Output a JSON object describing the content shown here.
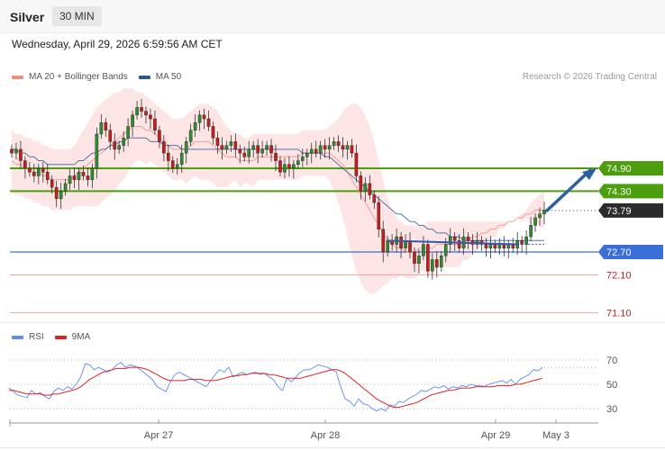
{
  "header": {
    "title": "Silver",
    "timeframe": "30 MIN"
  },
  "datetime": "Wednesday, April 29, 2026 6:59:56 AM CET",
  "price_legend": [
    {
      "label": "MA 20 + Bollinger Bands",
      "color": "#f28b82"
    },
    {
      "label": "MA 50",
      "color": "#2b5797"
    }
  ],
  "credit": "Research © 2026 Trading Central",
  "rsi_legend": [
    {
      "label": "RSI",
      "color": "#5b8def"
    },
    {
      "label": "9MA",
      "color": "#e02020"
    }
  ],
  "colors": {
    "bull": "#2e8b2e",
    "bear": "#c41e1e",
    "resistance": "#4c9e0f",
    "support": "#3a6fd8",
    "weak_support": "#f0a3a3",
    "current": "#333333",
    "arrow": "#2e5f9e"
  },
  "chart_data": [
    {
      "type": "candlestick",
      "title": "Silver",
      "timeframe": "30 MIN",
      "x_ticks": [
        "Apr 27",
        "Apr 28",
        "Apr 29",
        "May 3"
      ],
      "ylim": [
        70.8,
        77.0
      ],
      "levels": [
        {
          "value": 74.9,
          "label": "74.90",
          "role": "resistance"
        },
        {
          "value": 74.3,
          "label": "74.30",
          "role": "resistance"
        },
        {
          "value": 73.79,
          "label": "73.79",
          "role": "current"
        },
        {
          "value": 72.7,
          "label": "72.70",
          "role": "support"
        },
        {
          "value": 72.1,
          "label": "72.10",
          "role": "weak_support"
        },
        {
          "value": 71.1,
          "label": "71.10",
          "role": "weak_support"
        }
      ],
      "close": [
        75.3,
        75.4,
        75.1,
        74.9,
        74.8,
        74.7,
        74.9,
        74.8,
        74.6,
        74.4,
        74.1,
        74.3,
        74.5,
        74.7,
        74.6,
        74.8,
        74.7,
        74.6,
        74.9,
        75.8,
        76.1,
        75.9,
        75.6,
        75.4,
        75.5,
        75.7,
        76.0,
        76.3,
        76.5,
        76.4,
        76.3,
        76.2,
        75.9,
        75.6,
        75.3,
        75.1,
        74.9,
        75.0,
        75.3,
        75.6,
        75.9,
        76.1,
        76.3,
        76.2,
        76.0,
        75.7,
        75.5,
        75.4,
        75.5,
        75.6,
        75.4,
        75.3,
        75.2,
        75.4,
        75.5,
        75.3,
        75.4,
        75.5,
        75.3,
        75.1,
        74.8,
        75.0,
        74.9,
        75.0,
        75.1,
        75.2,
        75.3,
        75.4,
        75.3,
        75.5,
        75.4,
        75.5,
        75.6,
        75.5,
        75.4,
        75.5,
        75.3,
        74.7,
        74.3,
        74.5,
        74.2,
        74.0,
        73.3,
        72.7,
        73.0,
        72.9,
        73.1,
        72.8,
        73.0,
        72.7,
        72.4,
        72.6,
        72.9,
        72.2,
        72.5,
        72.3,
        72.6,
        72.9,
        73.1,
        73.0,
        72.8,
        73.1,
        73.0,
        72.9,
        73.0,
        72.9,
        72.8,
        72.9,
        72.8,
        72.9,
        72.8,
        72.9,
        72.8,
        73.0,
        72.9,
        73.1,
        73.4,
        73.6,
        73.7,
        73.8
      ],
      "ma20": [
        75.1,
        75.0,
        75.0,
        74.9,
        74.9,
        74.8,
        74.8,
        74.7,
        74.7,
        74.6,
        74.6,
        74.6,
        74.6,
        74.6,
        74.7,
        74.8,
        74.9,
        75.0,
        75.1,
        75.2,
        75.3,
        75.4,
        75.5,
        75.6,
        75.7,
        75.8,
        75.9,
        76.0,
        76.0,
        76.0,
        75.9,
        75.9,
        75.8,
        75.7,
        75.6,
        75.5,
        75.4,
        75.4,
        75.4,
        75.4,
        75.5,
        75.6,
        75.6,
        75.6,
        75.6,
        75.5,
        75.4,
        75.3,
        75.2,
        75.2,
        75.2,
        75.1,
        75.1,
        75.1,
        75.1,
        75.2,
        75.2,
        75.2,
        75.2,
        75.2,
        75.2,
        75.2,
        75.2,
        75.2,
        75.2,
        75.3,
        75.3,
        75.3,
        75.3,
        75.3,
        75.3,
        75.3,
        75.2,
        75.1,
        75.0,
        74.8,
        74.6,
        74.4,
        74.2,
        74.0,
        73.8,
        73.6,
        73.4,
        73.2,
        73.0,
        72.9,
        72.8,
        72.8,
        72.7,
        72.7,
        72.7,
        72.8,
        72.8,
        72.8,
        72.8,
        72.9,
        72.9,
        72.9,
        72.9,
        72.9,
        72.9,
        73.0,
        73.0,
        73.1,
        73.1,
        73.2,
        73.2,
        73.3,
        73.3,
        73.4,
        73.4,
        73.5,
        73.5,
        73.6,
        73.6,
        73.7,
        73.7,
        73.8,
        73.8,
        73.8
      ],
      "ma50": [
        75.4,
        75.4,
        75.3,
        75.3,
        75.2,
        75.2,
        75.1,
        75.1,
        75.0,
        75.0,
        75.0,
        75.0,
        75.0,
        75.0,
        75.0,
        75.1,
        75.1,
        75.2,
        75.3,
        75.3,
        75.4,
        75.4,
        75.5,
        75.5,
        75.6,
        75.6,
        75.7,
        75.7,
        75.7,
        75.7,
        75.7,
        75.6,
        75.6,
        75.6,
        75.5,
        75.5,
        75.5,
        75.5,
        75.4,
        75.4,
        75.4,
        75.4,
        75.4,
        75.4,
        75.4,
        75.4,
        75.4,
        75.4,
        75.4,
        75.4,
        75.4,
        75.4,
        75.4,
        75.4,
        75.4,
        75.4,
        75.4,
        75.4,
        75.4,
        75.4,
        75.4,
        75.4,
        75.4,
        75.4,
        75.4,
        75.3,
        75.3,
        75.3,
        75.3,
        75.3,
        75.2,
        75.2,
        75.1,
        75.0,
        74.9,
        74.8,
        74.7,
        74.6,
        74.5,
        74.4,
        74.3,
        74.2,
        74.1,
        74.0,
        73.9,
        73.8,
        73.7,
        73.7,
        73.6,
        73.5,
        73.5,
        73.4,
        73.4,
        73.3,
        73.3,
        73.2,
        73.2,
        73.2,
        73.1,
        73.1,
        73.1,
        73.0,
        73.0,
        73.0,
        73.0,
        73.0,
        73.0,
        73.0,
        73.0,
        73.0,
        73.0,
        73.0,
        73.0,
        73.0,
        73.0,
        73.0,
        73.0,
        73.0,
        73.0,
        73.0
      ],
      "bb_upper": [
        75.9,
        75.8,
        75.8,
        75.7,
        75.7,
        75.6,
        75.6,
        75.5,
        75.5,
        75.4,
        75.4,
        75.4,
        75.4,
        75.4,
        75.5,
        75.7,
        75.9,
        76.1,
        76.3,
        76.5,
        76.6,
        76.7,
        76.8,
        76.9,
        76.9,
        77.0,
        77.0,
        77.0,
        76.9,
        76.9,
        76.8,
        76.7,
        76.6,
        76.5,
        76.4,
        76.3,
        76.2,
        76.2,
        76.2,
        76.3,
        76.4,
        76.5,
        76.6,
        76.6,
        76.6,
        76.5,
        76.4,
        76.2,
        76.0,
        75.9,
        75.8,
        75.8,
        75.7,
        75.7,
        75.8,
        75.8,
        75.8,
        75.8,
        75.8,
        75.8,
        75.8,
        75.8,
        75.8,
        75.8,
        75.8,
        75.9,
        75.9,
        75.9,
        75.9,
        75.9,
        75.9,
        76.0,
        76.1,
        76.2,
        76.4,
        76.5,
        76.6,
        76.6,
        76.5,
        76.3,
        76.0,
        75.6,
        75.1,
        74.6,
        74.1,
        73.8,
        73.6,
        73.5,
        73.4,
        73.4,
        73.4,
        73.4,
        73.4,
        73.5,
        73.5,
        73.5,
        73.5,
        73.5,
        73.5,
        73.5,
        73.5,
        73.5,
        73.5,
        73.5,
        73.5,
        73.5,
        73.5,
        73.5,
        73.5,
        73.5,
        73.5,
        73.5,
        73.5,
        73.6,
        73.7,
        73.8,
        74.0,
        74.1,
        74.2,
        74.3
      ],
      "bb_lower": [
        74.3,
        74.2,
        74.2,
        74.1,
        74.1,
        74.0,
        74.0,
        73.9,
        73.9,
        73.8,
        73.8,
        73.8,
        73.8,
        73.8,
        73.9,
        73.9,
        73.9,
        73.9,
        73.9,
        73.9,
        74.0,
        74.1,
        74.2,
        74.3,
        74.5,
        74.6,
        74.8,
        75.0,
        75.1,
        75.1,
        75.0,
        75.1,
        75.0,
        74.9,
        74.8,
        74.7,
        74.6,
        74.6,
        74.6,
        74.5,
        74.6,
        74.7,
        74.6,
        74.6,
        74.6,
        74.5,
        74.4,
        74.4,
        74.4,
        74.5,
        74.6,
        74.4,
        74.5,
        74.5,
        74.4,
        74.6,
        74.6,
        74.6,
        74.6,
        74.6,
        74.6,
        74.6,
        74.6,
        74.6,
        74.6,
        74.7,
        74.7,
        74.7,
        74.7,
        74.7,
        74.7,
        74.6,
        74.3,
        74.0,
        73.6,
        73.1,
        72.6,
        72.2,
        71.9,
        71.7,
        71.6,
        71.6,
        71.7,
        71.8,
        71.9,
        72.0,
        72.0,
        72.1,
        72.0,
        72.0,
        72.0,
        72.2,
        72.2,
        72.1,
        72.1,
        72.3,
        72.3,
        72.3,
        72.3,
        72.3,
        72.3,
        72.5,
        72.5,
        72.7,
        72.7,
        72.9,
        72.9,
        73.1,
        73.1,
        73.3,
        73.3,
        73.5,
        73.5,
        73.6,
        73.5,
        73.6,
        73.4,
        73.5,
        73.4,
        73.3
      ]
    },
    {
      "type": "line",
      "title": "RSI",
      "ylim": [
        20,
        80
      ],
      "y_ticks": [
        70,
        50,
        30
      ],
      "series": [
        {
          "name": "RSI",
          "values": [
            47,
            44,
            41,
            40,
            39,
            45,
            42,
            43,
            40,
            38,
            44,
            47,
            45,
            48,
            46,
            50,
            56,
            67,
            66,
            62,
            64,
            62,
            60,
            62,
            66,
            68,
            64,
            66,
            65,
            63,
            60,
            57,
            54,
            48,
            46,
            44,
            52,
            58,
            60,
            58,
            56,
            54,
            52,
            50,
            48,
            53,
            58,
            62,
            60,
            64,
            56,
            58,
            60,
            58,
            59,
            60,
            58,
            59,
            56,
            54,
            48,
            45,
            55,
            52,
            56,
            60,
            62,
            62,
            64,
            66,
            65,
            64,
            62,
            60,
            48,
            38,
            36,
            32,
            38,
            34,
            33,
            30,
            28,
            30,
            28,
            33,
            32,
            36,
            35,
            38,
            40,
            42,
            45,
            44,
            46,
            48,
            47,
            49,
            46,
            48,
            47,
            49,
            48,
            50,
            49,
            49,
            48,
            50,
            51,
            52,
            53,
            51,
            54,
            50,
            54,
            56,
            58,
            62,
            61,
            64
          ]
        },
        {
          "name": "9MA",
          "values": [
            45,
            45,
            44,
            43,
            42,
            42,
            42,
            42,
            41,
            41,
            42,
            42,
            43,
            44,
            45,
            46,
            48,
            51,
            54,
            56,
            58,
            60,
            61,
            62,
            63,
            63,
            63,
            64,
            64,
            64,
            63,
            62,
            60,
            58,
            56,
            54,
            53,
            53,
            53,
            53,
            54,
            54,
            54,
            54,
            53,
            53,
            53,
            54,
            55,
            56,
            57,
            57,
            58,
            58,
            59,
            59,
            59,
            59,
            58,
            58,
            57,
            56,
            55,
            55,
            55,
            55,
            56,
            57,
            58,
            59,
            60,
            61,
            62,
            62,
            61,
            59,
            56,
            53,
            50,
            47,
            44,
            41,
            38,
            36,
            34,
            32,
            31,
            31,
            32,
            33,
            34,
            35,
            37,
            39,
            41,
            42,
            43,
            44,
            45,
            45,
            46,
            47,
            47,
            47,
            48,
            48,
            48,
            48,
            48,
            49,
            49,
            49,
            49,
            50,
            50,
            51,
            52,
            53,
            54,
            55
          ]
        }
      ]
    }
  ]
}
